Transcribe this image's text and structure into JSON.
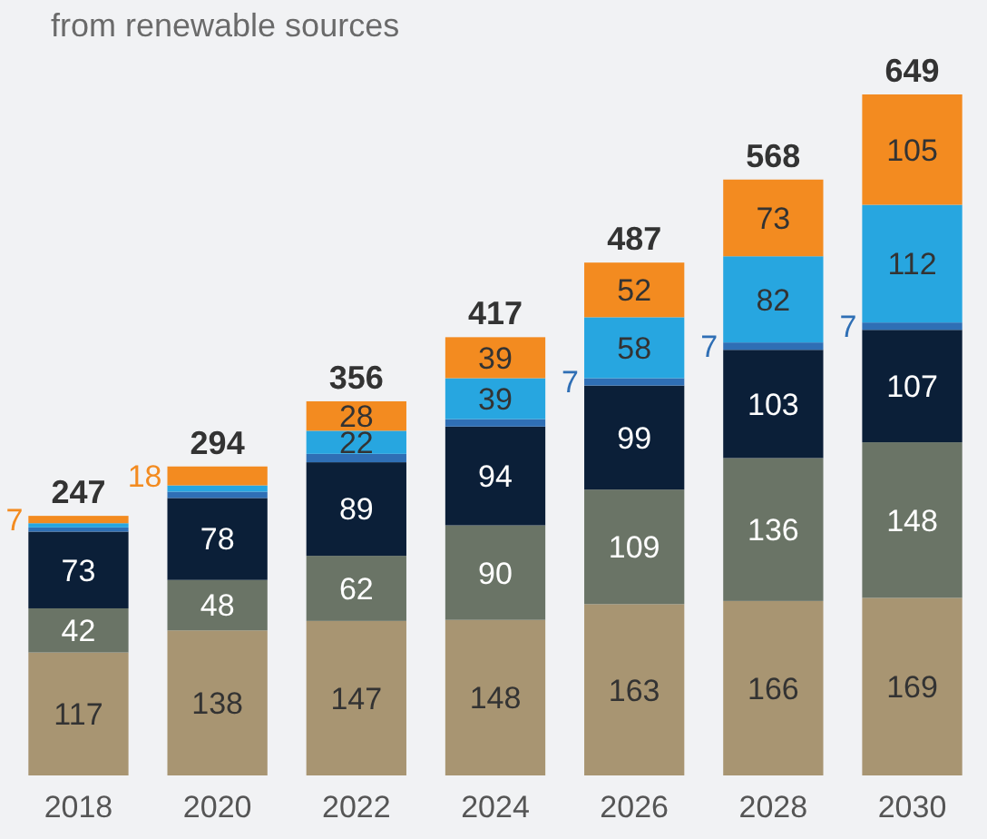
{
  "chart_data": {
    "type": "bar",
    "stacked": true,
    "subtitle": "from renewable sources",
    "categories": [
      "2018",
      "2020",
      "2022",
      "2024",
      "2026",
      "2028",
      "2030"
    ],
    "series": [
      {
        "color": "#a89572",
        "values": [
          117,
          138,
          147,
          148,
          163,
          166,
          169
        ],
        "value_labels": [
          "117",
          "138",
          "147",
          "148",
          "163",
          "166",
          "169"
        ]
      },
      {
        "color": "#6a7466",
        "values": [
          42,
          48,
          62,
          90,
          109,
          136,
          148
        ],
        "value_labels": [
          "42",
          "48",
          "62",
          "90",
          "109",
          "136",
          "148"
        ]
      },
      {
        "color": "#0b1f38",
        "values": [
          73,
          78,
          89,
          94,
          99,
          103,
          107
        ],
        "value_labels": [
          "73",
          "78",
          "89",
          "94",
          "99",
          "103",
          "107"
        ]
      },
      {
        "color": "#2f6fb5",
        "values": [
          4,
          6,
          8,
          7,
          7,
          7,
          7
        ],
        "value_labels": [
          null,
          null,
          null,
          null,
          "7",
          "7",
          "7"
        ]
      },
      {
        "color": "#27a6e0",
        "values": [
          4,
          6,
          22,
          39,
          58,
          82,
          112
        ],
        "value_labels": [
          null,
          null,
          "22",
          "39",
          "58",
          "82",
          "112"
        ]
      },
      {
        "color": "#f38b20",
        "values": [
          7,
          18,
          28,
          39,
          52,
          73,
          105
        ],
        "value_labels": [
          "7",
          "18",
          "28",
          "39",
          "52",
          "73",
          "105"
        ]
      }
    ],
    "totals": [
      "247",
      "294",
      "356",
      "417",
      "487",
      "568",
      "649"
    ]
  }
}
